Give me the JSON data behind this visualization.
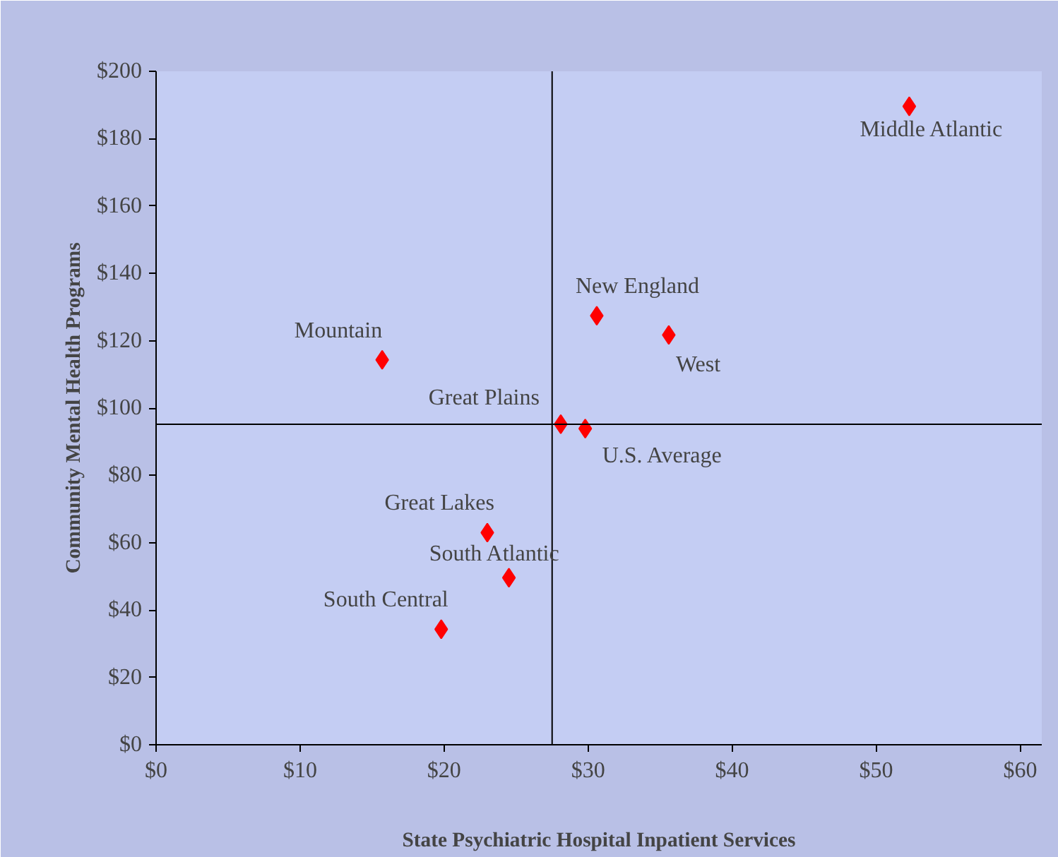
{
  "chart_data": {
    "type": "scatter",
    "xlabel": "State Psychiatric Hospital Inpatient Services",
    "ylabel": "Community Mental Health Programs",
    "x": [
      52.3,
      30.6,
      35.6,
      15.7,
      28.1,
      29.8,
      23.0,
      24.5,
      19.8
    ],
    "series": [
      {
        "color": "#ff0000",
        "values": [
          189.6,
          127.4,
          121.7,
          114.3,
          95.2,
          93.9,
          63.0,
          49.6,
          34.3
        ]
      }
    ],
    "marker": "diamond",
    "grid": false,
    "xlim": [
      0,
      61.5
    ],
    "ylim": [
      0,
      200
    ],
    "xticks": [
      {
        "value": 0,
        "label": "$0"
      },
      {
        "value": 10,
        "label": "$10"
      },
      {
        "value": 20,
        "label": "$20"
      },
      {
        "value": 30,
        "label": "$30"
      },
      {
        "value": 40,
        "label": "$40"
      },
      {
        "value": 50,
        "label": "$50"
      },
      {
        "value": 60,
        "label": "$60"
      }
    ],
    "yticks": [
      {
        "value": 0,
        "label": "$0"
      },
      {
        "value": 20,
        "label": "$20"
      },
      {
        "value": 40,
        "label": "$40"
      },
      {
        "value": 60,
        "label": "$60"
      },
      {
        "value": 80,
        "label": "$80"
      },
      {
        "value": 100,
        "label": "$100"
      },
      {
        "value": 120,
        "label": "$120"
      },
      {
        "value": 140,
        "label": "$140"
      },
      {
        "value": 160,
        "label": "$160"
      },
      {
        "value": 180,
        "label": "$180"
      },
      {
        "value": 200,
        "label": "$200"
      }
    ],
    "ref_lines": [
      {
        "axis": "x",
        "value": 27.5,
        "color": "#000000"
      },
      {
        "axis": "y",
        "value": 95.2,
        "color": "#000000"
      }
    ],
    "annotations": [
      {
        "text": "Middle Atlantic",
        "x": 52.3,
        "y": 189.6
      },
      {
        "text": "New England",
        "x": 30.6,
        "y": 127.4
      },
      {
        "text": "West",
        "x": 35.6,
        "y": 121.7
      },
      {
        "text": "Mountain",
        "x": 15.7,
        "y": 114.3
      },
      {
        "text": "Great Plains",
        "x": 28.1,
        "y": 95.2
      },
      {
        "text": "U.S. Average",
        "x": 29.8,
        "y": 93.9
      },
      {
        "text": "Great Lakes",
        "x": 23.0,
        "y": 63.0
      },
      {
        "text": "South Atlantic",
        "x": 24.5,
        "y": 49.6
      },
      {
        "text": "South Central",
        "x": 19.8,
        "y": 34.3
      }
    ]
  }
}
